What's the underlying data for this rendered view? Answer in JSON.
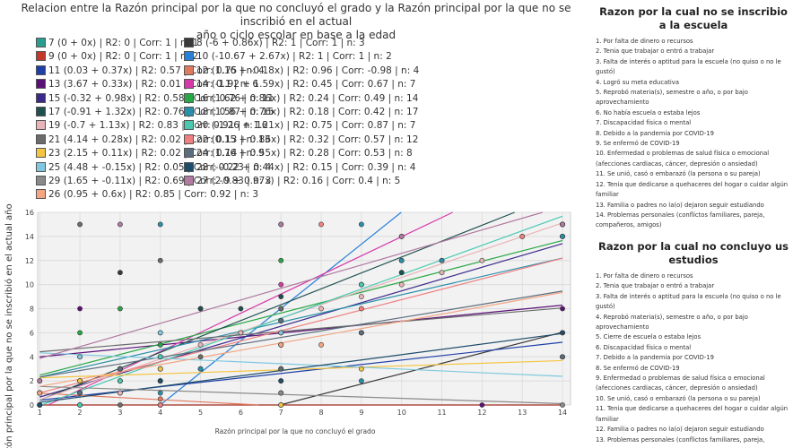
{
  "title_line1": "Relacion entre la Razón principal por la que no concluyó el grado y la Razón principal por la que no se inscribió en el actual",
  "title_line2": "año o ciclo escolar en base a la edad",
  "legend": [
    {
      "label": "7 (0 + 0x) | R2: 0 | Corr: 1 | n: 1",
      "color": "#2a9d8f"
    },
    {
      "label": "8 (-6 + 0.86x) | R2: 1 | Corr: 1 | n: 3",
      "color": "#3a3a3a"
    },
    {
      "label": "9 (0 + 0x) | R2: 0 | Corr: 1 | n: 2",
      "color": "#c0392b"
    },
    {
      "label": "10 (-10.67 + 2.67x) | R2: 1 | Corr: 1 | n: 2",
      "color": "#2980d9"
    },
    {
      "label": "11 (0.03 + 0.37x) | R2: 0.57 | Corr: 0.75 | n: 4",
      "color": "#1f3fa8"
    },
    {
      "label": "12 (1.16 + -0.18x) | R2: 0.96 | Corr: -0.98 | n: 4",
      "color": "#e07a5f"
    },
    {
      "label": "13 (3.67 + 0.33x) | R2: 0.01 | Corr: 0.1 | n: 6",
      "color": "#5b1078"
    },
    {
      "label": "14 (-1.92 + 1.59x) | R2: 0.45 | Corr: 0.67 | n: 7",
      "color": "#d63aa8"
    },
    {
      "label": "15 (-0.32 + 0.98x) | R2: 0.58 | Corr: 0.76 | n: 11",
      "color": "#3b2a8a"
    },
    {
      "label": "16 (1.62 + 0.86x) | R2: 0.24 | Corr: 0.49 | n: 14",
      "color": "#27a844"
    },
    {
      "label": "17 (-0.91 + 1.32x) | R2: 0.76 | Corr: 0.87 | n: 15",
      "color": "#1f4f4f"
    },
    {
      "label": "18 (1.56 + 0.76x) | R2: 0.18 | Corr: 0.42 | n: 17",
      "color": "#2a8fa8"
    },
    {
      "label": "19 (-0.7 + 1.13x) | R2: 0.83 | Corr: 0.91 | n: 16",
      "color": "#e8b4b8"
    },
    {
      "label": "20 (-1.26 + 1.21x) | R2: 0.75 | Corr: 0.87 | n: 7",
      "color": "#48c9b0"
    },
    {
      "label": "21 (4.14 + 0.28x) | R2: 0.02 | Corr: 0.13 | n: 13",
      "color": "#6b6b6b"
    },
    {
      "label": "22 (0.15 + 0.86x) | R2: 0.32 | Corr: 0.57 | n: 12",
      "color": "#f08080"
    },
    {
      "label": "23 (2.15 + 0.11x) | R2: 0.02 | Corr: 0.14 | n: 9",
      "color": "#f4c542"
    },
    {
      "label": "24 (1.76 + 0.55x) | R2: 0.28 | Corr: 0.53 | n: 8",
      "color": "#5d6d7e"
    },
    {
      "label": "25 (4.48 + -0.15x) | R2: 0.05 | Corr: -0.23 | n: 4",
      "color": "#7fc8e0"
    },
    {
      "label": "28 (-0.22 + 0.44x) | R2: 0.15 | Corr: 0.39 | n: 4",
      "color": "#1e4d6b"
    },
    {
      "label": "29 (1.65 + -0.11x) | R2: 0.69 | Corr: -0.83 | n: 3",
      "color": "#8a8a8a"
    },
    {
      "label": "27 (2.9 + 0.97x) | R2: 0.16 | Corr: 0.4 | n: 5",
      "color": "#b07aa1"
    },
    {
      "label": "26 (0.95 + 0.6x) | R2: 0.85 | Corr: 0.92 | n: 3",
      "color": "#f4a582"
    }
  ],
  "chart_data": {
    "type": "scatter",
    "xlabel": "Razón principal por la que no concluyó el grado",
    "ylabel": "Razón principal por la que no se inscribió en el actual año o ciclo escolar",
    "xlim": [
      0.95,
      14.2
    ],
    "ylim": [
      0,
      16
    ],
    "x_ticks": [
      1,
      2,
      3,
      4,
      5,
      6,
      7,
      8,
      9,
      10,
      11,
      12,
      13,
      14
    ],
    "y_ticks": [
      0,
      2,
      4,
      6,
      8,
      10,
      12,
      14,
      16
    ],
    "grid": true,
    "series": [
      {
        "name": "7",
        "intercept": 0,
        "slope": 0,
        "color": "#2a9d8f",
        "points": [
          [
            1,
            0
          ]
        ]
      },
      {
        "name": "8",
        "intercept": -6,
        "slope": 0.86,
        "color": "#3a3a3a",
        "points": [
          [
            7,
            0
          ],
          [
            14,
            6
          ],
          [
            3,
            11
          ]
        ]
      },
      {
        "name": "9",
        "intercept": 0,
        "slope": 0,
        "color": "#c0392b",
        "points": [
          [
            1,
            0
          ],
          [
            2,
            0
          ]
        ]
      },
      {
        "name": "10",
        "intercept": -10.67,
        "slope": 2.67,
        "color": "#2980d9",
        "points": [
          [
            4,
            0
          ],
          [
            7,
            8
          ]
        ]
      },
      {
        "name": "11",
        "intercept": 0.03,
        "slope": 0.37,
        "color": "#1f3fa8",
        "points": [
          [
            1,
            0
          ],
          [
            4,
            2
          ],
          [
            5,
            3
          ],
          [
            14,
            6
          ]
        ]
      },
      {
        "name": "12",
        "intercept": 1.16,
        "slope": -0.18,
        "color": "#e07a5f",
        "points": [
          [
            1,
            1
          ],
          [
            2,
            1
          ],
          [
            4,
            0.5
          ],
          [
            7,
            0
          ]
        ]
      },
      {
        "name": "13",
        "intercept": 3.67,
        "slope": 0.33,
        "color": "#5b1078",
        "points": [
          [
            1,
            1
          ],
          [
            2,
            8
          ],
          [
            4,
            3
          ],
          [
            7,
            6
          ],
          [
            12,
            0
          ],
          [
            14,
            8
          ]
        ]
      },
      {
        "name": "14",
        "intercept": -1.92,
        "slope": 1.59,
        "color": "#d63aa8",
        "points": [
          [
            1,
            0
          ],
          [
            2,
            0
          ],
          [
            4,
            4
          ],
          [
            7,
            10
          ],
          [
            7,
            15
          ],
          [
            4,
            0
          ],
          [
            9,
            10
          ]
        ]
      },
      {
        "name": "15",
        "intercept": -0.32,
        "slope": 0.98,
        "color": "#3b2a8a",
        "points": [
          [
            1,
            0
          ],
          [
            2,
            1
          ],
          [
            3,
            3
          ],
          [
            4,
            5
          ],
          [
            7,
            6
          ],
          [
            7,
            7
          ],
          [
            9,
            6
          ],
          [
            10,
            11
          ],
          [
            14,
            14
          ],
          [
            4,
            2
          ],
          [
            7,
            5
          ]
        ]
      },
      {
        "name": "16",
        "intercept": 1.62,
        "slope": 0.86,
        "color": "#27a844",
        "points": [
          [
            1,
            2
          ],
          [
            2,
            6
          ],
          [
            3,
            8
          ],
          [
            4,
            5
          ],
          [
            7,
            7
          ],
          [
            7,
            12
          ],
          [
            10,
            12
          ],
          [
            14,
            14
          ],
          [
            1,
            1
          ],
          [
            4,
            3
          ],
          [
            5,
            8
          ],
          [
            9,
            6
          ],
          [
            7,
            3
          ],
          [
            3,
            1
          ]
        ]
      },
      {
        "name": "17",
        "intercept": -0.91,
        "slope": 1.32,
        "color": "#1f4f4f",
        "points": [
          [
            1,
            0
          ],
          [
            2,
            1
          ],
          [
            3,
            3
          ],
          [
            4,
            2
          ],
          [
            4,
            4
          ],
          [
            5,
            8
          ],
          [
            6,
            8
          ],
          [
            7,
            7
          ],
          [
            7,
            9
          ],
          [
            9,
            10
          ],
          [
            10,
            11
          ],
          [
            11,
            12
          ],
          [
            14,
            14
          ],
          [
            3,
            2
          ],
          [
            6,
            6
          ]
        ]
      },
      {
        "name": "18",
        "intercept": 1.56,
        "slope": 0.76,
        "color": "#2a8fa8",
        "points": [
          [
            1,
            1
          ],
          [
            2,
            2
          ],
          [
            3,
            3
          ],
          [
            4,
            15
          ],
          [
            7,
            5
          ],
          [
            9,
            15
          ],
          [
            10,
            12
          ],
          [
            14,
            14
          ],
          [
            4,
            0
          ],
          [
            7,
            3
          ],
          [
            2,
            4
          ],
          [
            5,
            3
          ],
          [
            9,
            2
          ],
          [
            3,
            2
          ],
          [
            6,
            6
          ],
          [
            4,
            1
          ],
          [
            11,
            12
          ]
        ]
      },
      {
        "name": "19",
        "intercept": -0.7,
        "slope": 1.13,
        "color": "#e8b4b8",
        "points": [
          [
            1,
            0
          ],
          [
            2,
            2
          ],
          [
            3,
            3
          ],
          [
            4,
            4
          ],
          [
            5,
            5
          ],
          [
            6,
            6
          ],
          [
            7,
            7
          ],
          [
            8,
            8
          ],
          [
            9,
            9
          ],
          [
            10,
            10
          ],
          [
            11,
            11
          ],
          [
            12,
            12
          ],
          [
            13,
            14
          ],
          [
            14,
            15
          ],
          [
            3,
            1
          ],
          [
            7,
            5
          ]
        ]
      },
      {
        "name": "20",
        "intercept": -1.26,
        "slope": 1.21,
        "color": "#48c9b0",
        "points": [
          [
            1,
            0
          ],
          [
            3,
            2
          ],
          [
            4,
            4
          ],
          [
            7,
            7
          ],
          [
            9,
            10
          ],
          [
            14,
            15
          ],
          [
            2,
            0
          ]
        ]
      },
      {
        "name": "21",
        "intercept": 4.14,
        "slope": 0.28,
        "color": "#6b6b6b",
        "points": [
          [
            1,
            0
          ],
          [
            2,
            15
          ],
          [
            3,
            0
          ],
          [
            4,
            12
          ],
          [
            5,
            4
          ],
          [
            7,
            1
          ],
          [
            7,
            8
          ],
          [
            10,
            14
          ],
          [
            14,
            4
          ],
          [
            4,
            6
          ],
          [
            2,
            1
          ],
          [
            7,
            2
          ],
          [
            9,
            6
          ]
        ]
      },
      {
        "name": "22",
        "intercept": 0.15,
        "slope": 0.86,
        "color": "#f08080",
        "points": [
          [
            1,
            0
          ],
          [
            2,
            2
          ],
          [
            3,
            3
          ],
          [
            4,
            0
          ],
          [
            7,
            0
          ],
          [
            7,
            5
          ],
          [
            8,
            15
          ],
          [
            10,
            14
          ],
          [
            13,
            14
          ],
          [
            14,
            15
          ],
          [
            4,
            2
          ],
          [
            9,
            8
          ]
        ]
      },
      {
        "name": "23",
        "intercept": 2.15,
        "slope": 0.11,
        "color": "#f4c542",
        "points": [
          [
            1,
            2
          ],
          [
            2,
            2
          ],
          [
            3,
            3
          ],
          [
            4,
            3
          ],
          [
            7,
            2
          ],
          [
            7,
            0
          ],
          [
            9,
            3
          ],
          [
            14,
            4
          ],
          [
            7,
            3
          ]
        ]
      },
      {
        "name": "24",
        "intercept": 1.76,
        "slope": 0.55,
        "color": "#5d6d7e",
        "points": [
          [
            1,
            0
          ],
          [
            2,
            1
          ],
          [
            3,
            3
          ],
          [
            4,
            2
          ],
          [
            7,
            7
          ],
          [
            9,
            6
          ],
          [
            14,
            4
          ],
          [
            7,
            3
          ]
        ]
      },
      {
        "name": "25",
        "intercept": 4.48,
        "slope": -0.15,
        "color": "#7fc8e0",
        "points": [
          [
            1,
            0
          ],
          [
            2,
            4
          ],
          [
            4,
            6
          ],
          [
            7,
            6
          ]
        ]
      },
      {
        "name": "28",
        "intercept": -0.22,
        "slope": 0.44,
        "color": "#1e4d6b",
        "points": [
          [
            1,
            0
          ],
          [
            4,
            2
          ],
          [
            7,
            2
          ],
          [
            14,
            6
          ]
        ]
      },
      {
        "name": "29",
        "intercept": 1.65,
        "slope": -0.11,
        "color": "#8a8a8a",
        "points": [
          [
            1,
            1
          ],
          [
            7,
            1
          ],
          [
            14,
            0
          ]
        ]
      },
      {
        "name": "27",
        "intercept": 2.9,
        "slope": 0.97,
        "color": "#b07aa1",
        "points": [
          [
            1,
            2
          ],
          [
            3,
            15
          ],
          [
            7,
            15
          ],
          [
            10,
            14
          ],
          [
            14,
            15
          ]
        ]
      },
      {
        "name": "26",
        "intercept": 0.95,
        "slope": 0.6,
        "color": "#f4a582",
        "points": [
          [
            1,
            1
          ],
          [
            7,
            5
          ],
          [
            8,
            5
          ]
        ]
      }
    ]
  },
  "side1": {
    "title": "Razon por la cual no se inscribio a la escuela",
    "items": [
      "1.  Por falta de dinero o recursos",
      "2.  Tenia que trabajar o entró a trabajar",
      "3.  Falta de interés o aptitud para la escuela (no quiso o no le",
      "gustó)",
      "4.  Logró su meta educativa",
      "5.  Reprobó materia(s), semestre o año, o por bajo",
      "aprovechamiento",
      "6.  No había escuela o estaba lejos",
      "7.  Discapacidad física o mental",
      "8.  Debido a la pandemia por COVID-19",
      "9.  Se enfermó de COVID-19",
      "10.  Enfermedad o problemas de salud física o emocional",
      "(afecciones cardiacas, cáncer, depresión o ansiedad)",
      "11.  Se unió, casó o embarazó (la persona o su pareja)",
      "12.  Tenia que dedicarse a quehaceres del hogar o cuidar algún",
      "familiar",
      "13.  Familia o padres no la(o) dejaron seguir estudiando",
      "14.  Problemas personales (conflictos familiares, pareja,",
      "compañeros, amigos)"
    ]
  },
  "side2": {
    "title": "Razon por la cual no concluyo us estudios",
    "items": [
      "1.  Por falta de dinero o recursos",
      "2.  Tenia que trabajar o entró a trabajar",
      "3.  Falta de interés o aptitud para la escuela (no quiso o no le",
      "gustó)",
      "4.  Reprobó materia(s), semestre o año, o por bajo",
      "aprovechamiento",
      "5.  Cierre de escuela o estaba lejos",
      "6.  Discapacidad física o mental",
      "7.  Debido a la pandemia por COVID-19",
      "8.  Se enfermó de COVID-19",
      "9.  Enfermedad o problemas de salud física o emocional",
      "(afecciones cardiacas, cáncer, depresión o ansiedad)",
      "10.  Se unió, casó o embarazó (la persona o su pareja)",
      "11.  Tenia que dedicarse a quehaceres del hogar o cuidar algún",
      "familiar",
      "12.  Familia o padres no la(o) dejaron seguir estudiando",
      "13.  Problemas personales (conflictos familiares, pareja,"
    ]
  }
}
